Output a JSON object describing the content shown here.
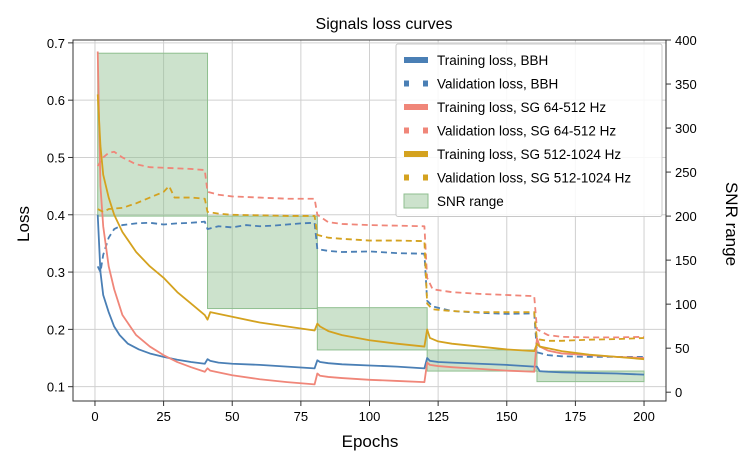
{
  "chart_data": {
    "type": "line",
    "title": "Signals loss curves",
    "xlabel": "Epochs",
    "ylabel": "Loss",
    "y2label": "SNR range",
    "xlim": [
      -8,
      208
    ],
    "ylim": [
      0.075,
      0.705
    ],
    "y2lim": [
      -10,
      400
    ],
    "xticks": [
      0,
      25,
      50,
      75,
      100,
      125,
      150,
      175,
      200
    ],
    "yticks": [
      0.1,
      0.2,
      0.3,
      0.4,
      0.5,
      0.6,
      0.7
    ],
    "y2ticks": [
      0,
      50,
      100,
      150,
      200,
      250,
      300,
      350,
      400
    ],
    "grid": true,
    "legend_position": "top-right",
    "colors": {
      "bbh": "#4a7fb5",
      "sg_low": "#f08679",
      "sg_high": "#d4a21f",
      "snr": "#8fbf8f"
    },
    "legend": [
      {
        "label": "Training loss, BBH",
        "color": "#4a7fb5",
        "style": "solid"
      },
      {
        "label": "Validation loss, BBH",
        "color": "#4a7fb5",
        "style": "dashed"
      },
      {
        "label": "Training loss, SG 64-512 Hz",
        "color": "#f08679",
        "style": "solid"
      },
      {
        "label": "Validation loss, SG 64-512 Hz",
        "color": "#f08679",
        "style": "dashed"
      },
      {
        "label": "Training loss, SG 512-1024 Hz",
        "color": "#d4a21f",
        "style": "solid"
      },
      {
        "label": "Validation loss, SG 512-1024 Hz",
        "color": "#d4a21f",
        "style": "dashed"
      },
      {
        "label": "SNR range",
        "color": "#8fbf8f",
        "style": "patch"
      }
    ],
    "snr_range": [
      {
        "x": [
          1,
          41
        ],
        "snr": [
          200,
          385
        ]
      },
      {
        "x": [
          41,
          81
        ],
        "snr": [
          95,
          200
        ]
      },
      {
        "x": [
          81,
          121
        ],
        "snr": [
          48,
          96
        ]
      },
      {
        "x": [
          121,
          161
        ],
        "snr": [
          24,
          48
        ]
      },
      {
        "x": [
          161,
          200
        ],
        "snr": [
          12,
          24
        ]
      }
    ],
    "series": [
      {
        "key": "train_bbh",
        "color": "#4a7fb5",
        "dashed": false,
        "points": [
          [
            1,
            0.4
          ],
          [
            2,
            0.3
          ],
          [
            3,
            0.26
          ],
          [
            5,
            0.23
          ],
          [
            7,
            0.205
          ],
          [
            9,
            0.19
          ],
          [
            12,
            0.175
          ],
          [
            16,
            0.165
          ],
          [
            20,
            0.158
          ],
          [
            25,
            0.152
          ],
          [
            30,
            0.147
          ],
          [
            35,
            0.143
          ],
          [
            40,
            0.14
          ],
          [
            41,
            0.148
          ],
          [
            42,
            0.145
          ],
          [
            45,
            0.142
          ],
          [
            50,
            0.14
          ],
          [
            60,
            0.138
          ],
          [
            70,
            0.135
          ],
          [
            80,
            0.132
          ],
          [
            81,
            0.146
          ],
          [
            82,
            0.143
          ],
          [
            85,
            0.141
          ],
          [
            90,
            0.139
          ],
          [
            100,
            0.137
          ],
          [
            110,
            0.135
          ],
          [
            120,
            0.132
          ],
          [
            121,
            0.15
          ],
          [
            122,
            0.145
          ],
          [
            125,
            0.143
          ],
          [
            130,
            0.142
          ],
          [
            140,
            0.14
          ],
          [
            150,
            0.138
          ],
          [
            160,
            0.135
          ],
          [
            161,
            0.135
          ],
          [
            162,
            0.127
          ],
          [
            165,
            0.126
          ],
          [
            170,
            0.125
          ],
          [
            180,
            0.124
          ],
          [
            190,
            0.123
          ],
          [
            200,
            0.121
          ]
        ]
      },
      {
        "key": "val_bbh",
        "color": "#4a7fb5",
        "dashed": true,
        "points": [
          [
            1,
            0.31
          ],
          [
            2,
            0.3
          ],
          [
            3,
            0.33
          ],
          [
            5,
            0.36
          ],
          [
            7,
            0.375
          ],
          [
            10,
            0.382
          ],
          [
            15,
            0.385
          ],
          [
            20,
            0.386
          ],
          [
            25,
            0.383
          ],
          [
            30,
            0.385
          ],
          [
            35,
            0.386
          ],
          [
            40,
            0.388
          ],
          [
            41,
            0.375
          ],
          [
            45,
            0.38
          ],
          [
            50,
            0.378
          ],
          [
            55,
            0.382
          ],
          [
            60,
            0.38
          ],
          [
            65,
            0.381
          ],
          [
            70,
            0.383
          ],
          [
            75,
            0.385
          ],
          [
            80,
            0.386
          ],
          [
            81,
            0.34
          ],
          [
            85,
            0.337
          ],
          [
            90,
            0.335
          ],
          [
            100,
            0.336
          ],
          [
            110,
            0.333
          ],
          [
            120,
            0.332
          ],
          [
            121,
            0.25
          ],
          [
            123,
            0.24
          ],
          [
            130,
            0.232
          ],
          [
            140,
            0.229
          ],
          [
            150,
            0.227
          ],
          [
            160,
            0.228
          ],
          [
            161,
            0.16
          ],
          [
            165,
            0.155
          ],
          [
            170,
            0.153
          ],
          [
            180,
            0.152
          ],
          [
            190,
            0.152
          ],
          [
            200,
            0.152
          ]
        ]
      },
      {
        "key": "train_sg_low",
        "color": "#f08679",
        "dashed": false,
        "points": [
          [
            1,
            0.685
          ],
          [
            2,
            0.45
          ],
          [
            3,
            0.38
          ],
          [
            5,
            0.31
          ],
          [
            7,
            0.27
          ],
          [
            10,
            0.225
          ],
          [
            15,
            0.19
          ],
          [
            20,
            0.17
          ],
          [
            25,
            0.155
          ],
          [
            30,
            0.143
          ],
          [
            35,
            0.134
          ],
          [
            40,
            0.126
          ],
          [
            41,
            0.132
          ],
          [
            42,
            0.128
          ],
          [
            45,
            0.125
          ],
          [
            50,
            0.12
          ],
          [
            60,
            0.113
          ],
          [
            70,
            0.108
          ],
          [
            80,
            0.104
          ],
          [
            81,
            0.123
          ],
          [
            82,
            0.119
          ],
          [
            85,
            0.117
          ],
          [
            90,
            0.115
          ],
          [
            100,
            0.112
          ],
          [
            110,
            0.11
          ],
          [
            120,
            0.108
          ],
          [
            121,
            0.142
          ],
          [
            122,
            0.138
          ],
          [
            125,
            0.136
          ],
          [
            130,
            0.134
          ],
          [
            140,
            0.131
          ],
          [
            150,
            0.128
          ],
          [
            160,
            0.126
          ],
          [
            161,
            0.185
          ],
          [
            162,
            0.17
          ],
          [
            165,
            0.163
          ],
          [
            170,
            0.158
          ],
          [
            180,
            0.155
          ],
          [
            190,
            0.152
          ],
          [
            200,
            0.15
          ]
        ]
      },
      {
        "key": "val_sg_low",
        "color": "#f08679",
        "dashed": true,
        "points": [
          [
            1,
            0.485
          ],
          [
            3,
            0.5
          ],
          [
            5,
            0.508
          ],
          [
            7,
            0.51
          ],
          [
            10,
            0.5
          ],
          [
            15,
            0.488
          ],
          [
            20,
            0.483
          ],
          [
            25,
            0.482
          ],
          [
            30,
            0.481
          ],
          [
            35,
            0.48
          ],
          [
            40,
            0.478
          ],
          [
            41,
            0.44
          ],
          [
            45,
            0.435
          ],
          [
            50,
            0.432
          ],
          [
            60,
            0.43
          ],
          [
            70,
            0.428
          ],
          [
            80,
            0.428
          ],
          [
            81,
            0.4
          ],
          [
            85,
            0.387
          ],
          [
            90,
            0.384
          ],
          [
            100,
            0.382
          ],
          [
            110,
            0.381
          ],
          [
            120,
            0.38
          ],
          [
            121,
            0.29
          ],
          [
            123,
            0.27
          ],
          [
            130,
            0.265
          ],
          [
            140,
            0.262
          ],
          [
            150,
            0.26
          ],
          [
            160,
            0.258
          ],
          [
            161,
            0.2
          ],
          [
            165,
            0.19
          ],
          [
            170,
            0.187
          ],
          [
            180,
            0.186
          ],
          [
            190,
            0.186
          ],
          [
            200,
            0.187
          ]
        ]
      },
      {
        "key": "train_sg_high",
        "color": "#d4a21f",
        "dashed": false,
        "points": [
          [
            1,
            0.61
          ],
          [
            2,
            0.52
          ],
          [
            3,
            0.47
          ],
          [
            5,
            0.43
          ],
          [
            7,
            0.4
          ],
          [
            10,
            0.37
          ],
          [
            15,
            0.335
          ],
          [
            20,
            0.31
          ],
          [
            25,
            0.29
          ],
          [
            30,
            0.265
          ],
          [
            35,
            0.245
          ],
          [
            40,
            0.225
          ],
          [
            41,
            0.217
          ],
          [
            42,
            0.23
          ],
          [
            45,
            0.227
          ],
          [
            50,
            0.222
          ],
          [
            60,
            0.212
          ],
          [
            70,
            0.205
          ],
          [
            80,
            0.198
          ],
          [
            81,
            0.21
          ],
          [
            82,
            0.205
          ],
          [
            85,
            0.197
          ],
          [
            90,
            0.19
          ],
          [
            100,
            0.181
          ],
          [
            110,
            0.175
          ],
          [
            120,
            0.17
          ],
          [
            121,
            0.2
          ],
          [
            122,
            0.185
          ],
          [
            125,
            0.179
          ],
          [
            130,
            0.175
          ],
          [
            140,
            0.17
          ],
          [
            150,
            0.165
          ],
          [
            160,
            0.162
          ],
          [
            161,
            0.175
          ],
          [
            162,
            0.17
          ],
          [
            165,
            0.167
          ],
          [
            170,
            0.162
          ],
          [
            180,
            0.156
          ],
          [
            190,
            0.152
          ],
          [
            200,
            0.148
          ]
        ]
      },
      {
        "key": "val_sg_high",
        "color": "#d4a21f",
        "dashed": true,
        "points": [
          [
            1,
            0.41
          ],
          [
            3,
            0.405
          ],
          [
            5,
            0.41
          ],
          [
            10,
            0.412
          ],
          [
            15,
            0.42
          ],
          [
            20,
            0.43
          ],
          [
            25,
            0.44
          ],
          [
            27,
            0.45
          ],
          [
            29,
            0.43
          ],
          [
            31,
            0.43
          ],
          [
            35,
            0.43
          ],
          [
            40,
            0.428
          ],
          [
            41,
            0.405
          ],
          [
            45,
            0.402
          ],
          [
            50,
            0.4
          ],
          [
            60,
            0.399
          ],
          [
            70,
            0.398
          ],
          [
            80,
            0.398
          ],
          [
            81,
            0.365
          ],
          [
            85,
            0.36
          ],
          [
            90,
            0.358
          ],
          [
            100,
            0.355
          ],
          [
            110,
            0.355
          ],
          [
            120,
            0.354
          ],
          [
            121,
            0.245
          ],
          [
            123,
            0.235
          ],
          [
            130,
            0.232
          ],
          [
            140,
            0.23
          ],
          [
            150,
            0.23
          ],
          [
            160,
            0.23
          ],
          [
            161,
            0.183
          ],
          [
            165,
            0.18
          ],
          [
            170,
            0.18
          ],
          [
            180,
            0.182
          ],
          [
            190,
            0.183
          ],
          [
            200,
            0.185
          ]
        ]
      }
    ]
  }
}
